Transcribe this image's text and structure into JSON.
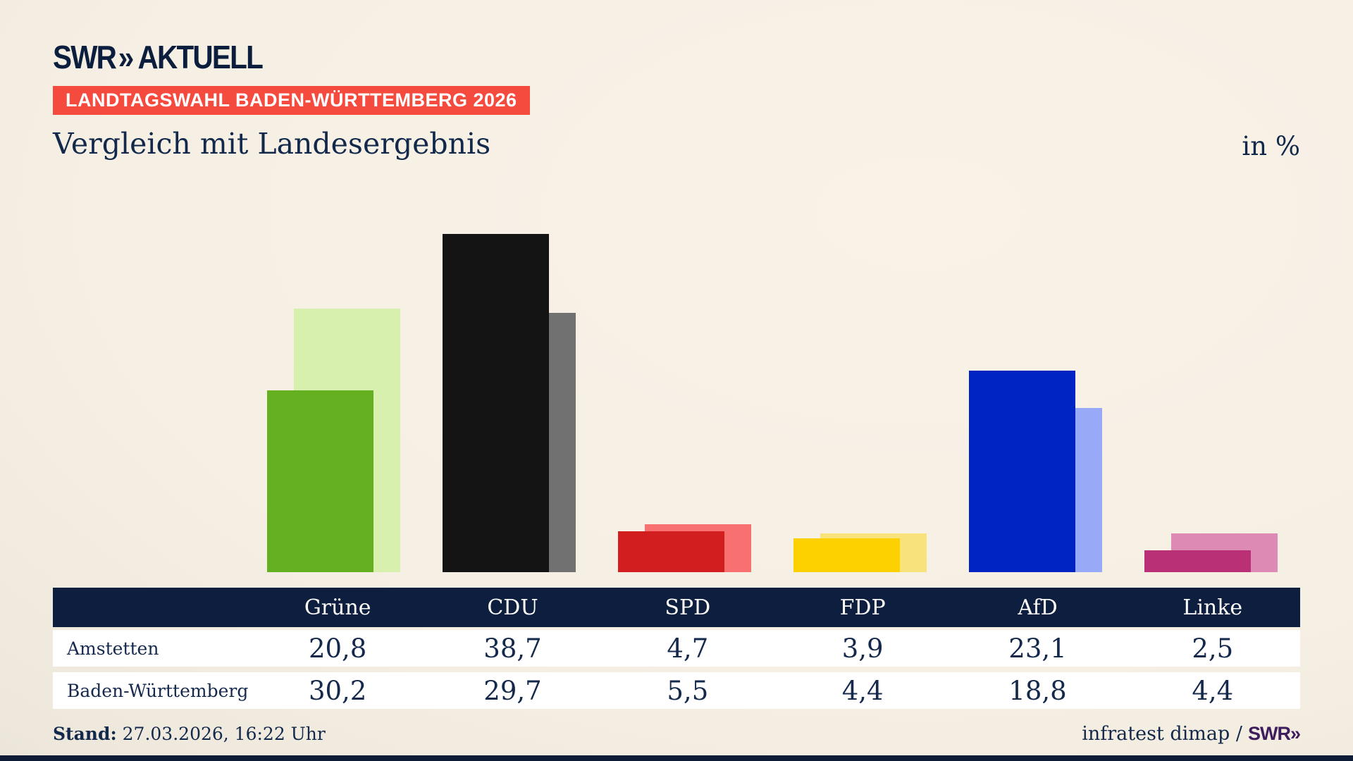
{
  "header": {
    "logo_swr": "SWR",
    "logo_chevrons": "»",
    "logo_suffix": "AKTUELL",
    "badge": "LANDTAGSWAHL BADEN-WÜRTTEMBERG 2026",
    "title": "Vergleich mit Landesergebnis",
    "unit_label": "in %"
  },
  "chart_data": {
    "type": "bar",
    "title": "Vergleich mit Landesergebnis",
    "unit": "in %",
    "categories": [
      "Grüne",
      "CDU",
      "SPD",
      "FDP",
      "AfD",
      "Linke"
    ],
    "series": [
      {
        "name": "Amstetten",
        "values": [
          20.8,
          38.7,
          4.7,
          3.9,
          23.1,
          2.5
        ]
      },
      {
        "name": "Baden-Württemberg",
        "values": [
          30.2,
          29.7,
          5.5,
          4.4,
          18.8,
          4.4
        ]
      }
    ],
    "colors": {
      "front": [
        "#65b021",
        "#141414",
        "#d21e1e",
        "#fdd100",
        "#0023c4",
        "#b93077"
      ],
      "back": [
        "#d7f0ad",
        "#717171",
        "#f97070",
        "#f8e27b",
        "#98a9f8",
        "#dd8ab4"
      ]
    },
    "ylim": [
      0,
      40
    ],
    "grid": false,
    "legend_position": "table-rows",
    "value_format": "comma-decimal"
  },
  "table": {
    "columns": [
      "Grüne",
      "CDU",
      "SPD",
      "FDP",
      "AfD",
      "Linke"
    ],
    "rows": [
      {
        "label": "Amstetten",
        "values": [
          "20,8",
          "38,7",
          "4,7",
          "3,9",
          "23,1",
          "2,5"
        ]
      },
      {
        "label": "Baden-Württemberg",
        "values": [
          "30,2",
          "29,7",
          "5,5",
          "4,4",
          "18,8",
          "4,4"
        ]
      }
    ]
  },
  "footer": {
    "stand_label": "Stand:",
    "stand_value": "27.03.2026, 16:22 Uhr",
    "source_text": "infratest dimap /",
    "source_logo": "SWR»"
  },
  "theme": {
    "background_beige": "#f6efe4",
    "navy": "#0e1e3e",
    "text_navy": "#13294b",
    "badge_red": "#f54a3e",
    "swr_purple": "#3e1d5d",
    "row_white": "#ffffff"
  }
}
